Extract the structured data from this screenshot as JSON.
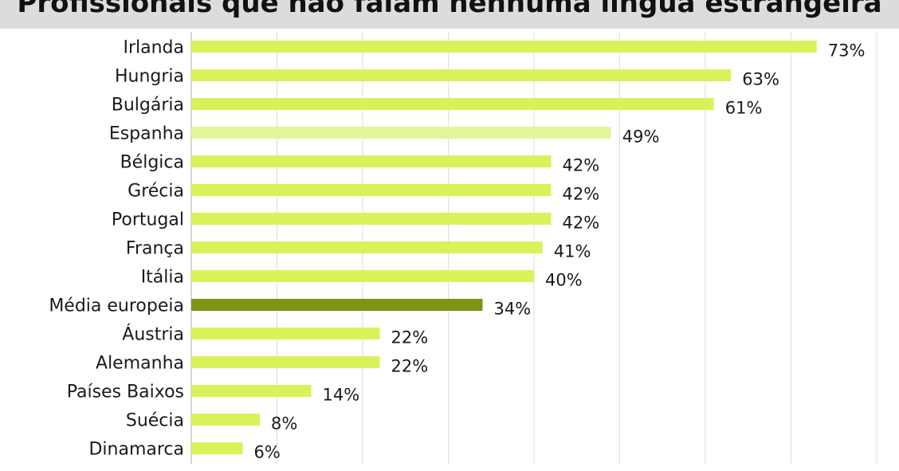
{
  "chart_data": {
    "type": "bar",
    "orientation": "horizontal",
    "title": "Profissionais que não falam nenhuma língua estrangeira",
    "categories": [
      "Irlanda",
      "Hungria",
      "Bulgária",
      "Espanha",
      "Bélgica",
      "Grécia",
      "Portugal",
      "França",
      "Itália",
      "Média europeia",
      "Áustria",
      "Alemanha",
      "Países Baixos",
      "Suécia",
      "Dinamarca"
    ],
    "values": [
      73,
      63,
      61,
      49,
      42,
      42,
      42,
      41,
      40,
      34,
      22,
      22,
      14,
      8,
      6
    ],
    "value_labels": [
      "73%",
      "63%",
      "61%",
      "49%",
      "42%",
      "42%",
      "42%",
      "41%",
      "40%",
      "34%",
      "22%",
      "22%",
      "14%",
      "8%",
      "6%"
    ],
    "xlim": [
      0,
      80
    ],
    "grid": true,
    "colors": {
      "default": "#d9f25a",
      "Espanha": "#e3f59a",
      "Média europeia": "#7d9414",
      "grid": "#dddddd",
      "axis": "#bbbbbb",
      "title_background": "#dcdcdc"
    }
  }
}
